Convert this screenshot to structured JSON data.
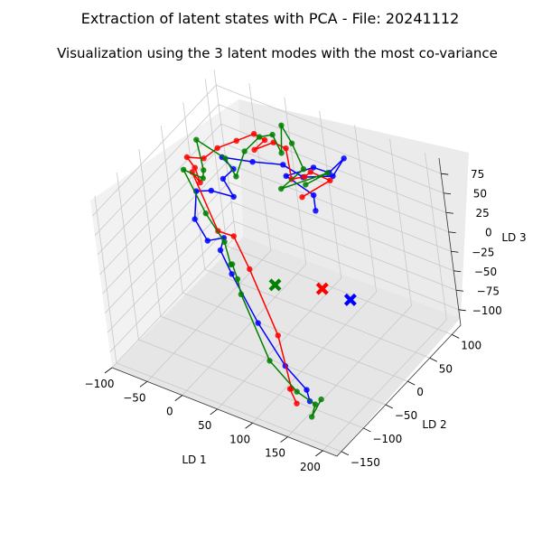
{
  "chart_data": {
    "type": "scatter",
    "title": "Extraction of latent states with PCA - File: 20241112",
    "subtitle": "Visualization using the 3 latent modes with the most co-variance",
    "xlabel": "LD 1",
    "ylabel": "LD 2",
    "zlabel": "LD 3",
    "x_ticks": [
      "−100",
      "−50",
      "0",
      "50",
      "100",
      "150",
      "200"
    ],
    "y_ticks": [
      "−150",
      "−100",
      "−50",
      "0",
      "50",
      "100"
    ],
    "z_ticks": [
      "−100",
      "−75",
      "−50",
      "−25",
      "0",
      "25",
      "50",
      "75"
    ],
    "grid": true,
    "series": [
      {
        "color": "#0000ff",
        "marker_color": "#0000ff",
        "points": [
          [
            190,
            -160,
            -60
          ],
          [
            180,
            -150,
            -55
          ],
          [
            130,
            -120,
            -60
          ],
          [
            90,
            -110,
            -25
          ],
          [
            45,
            -90,
            10
          ],
          [
            10,
            -60,
            10
          ],
          [
            10,
            -50,
            20
          ],
          [
            -30,
            -30,
            -10
          ],
          [
            -60,
            -10,
            -5
          ],
          [
            -60,
            0,
            25
          ],
          [
            -45,
            10,
            25
          ],
          [
            -20,
            20,
            20
          ],
          [
            -40,
            30,
            30
          ],
          [
            -30,
            40,
            40
          ],
          [
            -45,
            40,
            50
          ],
          [
            0,
            40,
            60
          ],
          [
            30,
            60,
            55
          ],
          [
            50,
            70,
            40
          ],
          [
            80,
            90,
            40
          ],
          [
            100,
            90,
            70
          ],
          [
            90,
            70,
            60
          ],
          [
            60,
            80,
            50
          ],
          [
            40,
            50,
            50
          ],
          [
            70,
            60,
            30
          ],
          [
            70,
            60,
            10
          ]
        ],
        "end_marker": [
          150,
          0,
          -40
        ]
      },
      {
        "color": "#ff0000",
        "marker_color": "#ff0000",
        "points": [
          [
            170,
            -160,
            -70
          ],
          [
            140,
            -130,
            -80
          ],
          [
            150,
            -140,
            -70
          ],
          [
            110,
            -100,
            -40
          ],
          [
            50,
            -60,
            0
          ],
          [
            10,
            -30,
            10
          ],
          [
            -20,
            -20,
            0
          ],
          [
            -70,
            10,
            40
          ],
          [
            -60,
            10,
            30
          ],
          [
            -80,
            30,
            30
          ],
          [
            -90,
            30,
            40
          ],
          [
            -80,
            50,
            30
          ],
          [
            -50,
            40,
            60
          ],
          [
            -20,
            40,
            80
          ],
          [
            0,
            50,
            90
          ],
          [
            0,
            70,
            70
          ],
          [
            -10,
            60,
            60
          ],
          [
            20,
            60,
            80
          ],
          [
            30,
            70,
            70
          ],
          [
            40,
            60,
            40
          ],
          [
            60,
            60,
            50
          ],
          [
            70,
            60,
            60
          ],
          [
            90,
            70,
            50
          ],
          [
            60,
            50,
            30
          ]
        ],
        "end_marker": [
          110,
          0,
          -40
        ]
      },
      {
        "color": "#008000",
        "marker_color": "#008000",
        "points": [
          [
            200,
            -150,
            -60
          ],
          [
            190,
            -160,
            -80
          ],
          [
            190,
            -150,
            -70
          ],
          [
            150,
            -130,
            -80
          ],
          [
            100,
            -110,
            -70
          ],
          [
            40,
            -70,
            -30
          ],
          [
            30,
            -60,
            -20
          ],
          [
            10,
            -40,
            -20
          ],
          [
            0,
            -30,
            -30
          ],
          [
            -20,
            -10,
            -20
          ],
          [
            -50,
            0,
            0
          ],
          [
            -90,
            20,
            30
          ],
          [
            -70,
            30,
            20
          ],
          [
            -60,
            20,
            40
          ],
          [
            -80,
            40,
            60
          ],
          [
            -40,
            40,
            50
          ],
          [
            -20,
            30,
            40
          ],
          [
            -10,
            40,
            70
          ],
          [
            0,
            60,
            80
          ],
          [
            20,
            60,
            90
          ],
          [
            30,
            60,
            70
          ],
          [
            20,
            80,
            90
          ],
          [
            40,
            70,
            80
          ],
          [
            60,
            60,
            60
          ],
          [
            30,
            50,
            30
          ],
          [
            80,
            80,
            50
          ],
          [
            60,
            60,
            40
          ]
        ],
        "end_marker": [
          40,
          0,
          -60
        ]
      }
    ]
  }
}
